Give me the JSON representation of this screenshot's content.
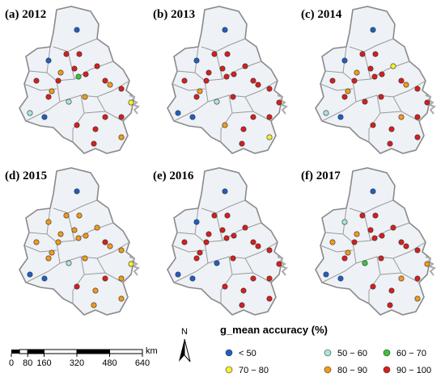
{
  "panels": [
    {
      "label": "(a) 2012"
    },
    {
      "label": "(b) 2013"
    },
    {
      "label": "(c) 2014"
    },
    {
      "label": "(d) 2015"
    },
    {
      "label": "(e) 2016"
    },
    {
      "label": "(f) 2017"
    }
  ],
  "legend": {
    "title": "g_mean accuracy (%)",
    "items": [
      {
        "label": "< 50",
        "color": "#1f5fc4"
      },
      {
        "label": "50 − 60",
        "color": "#a8e6dc"
      },
      {
        "label": "60 − 70",
        "color": "#3cc23c"
      },
      {
        "label": "70 − 80",
        "color": "#f5f02a"
      },
      {
        "label": "80 − 90",
        "color": "#f29a18"
      },
      {
        "label": "90 − 100",
        "color": "#d81e1e"
      }
    ]
  },
  "scale": {
    "ticks": [
      0,
      80,
      160,
      320,
      480,
      640
    ],
    "unit": "km"
  },
  "north": "N"
}
